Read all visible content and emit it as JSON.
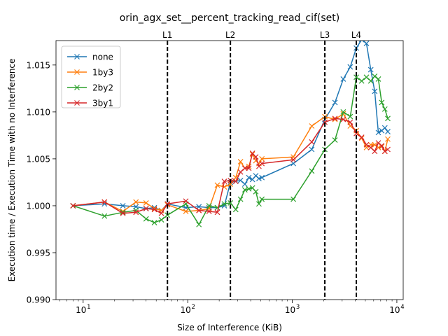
{
  "chart_data": {
    "type": "line",
    "title": "orin_agx_set__percent_tracking_read_cif(set)",
    "xlabel": "Size of Interference (KiB)",
    "ylabel": "Execution time / Execution Time with no Interference",
    "xscale": "log",
    "xlim": [
      5.5,
      11500
    ],
    "ylim": [
      0.99,
      1.0176
    ],
    "x_ticks": [
      {
        "value": 10,
        "base": "10",
        "exp": "1"
      },
      {
        "value": 100,
        "base": "10",
        "exp": "2"
      },
      {
        "value": 1000,
        "base": "10",
        "exp": "3"
      },
      {
        "value": 10000,
        "base": "10",
        "exp": "4"
      }
    ],
    "y_ticks": [
      "0.990",
      "0.995",
      "1.000",
      "1.005",
      "1.010",
      "1.015"
    ],
    "grid": false,
    "legend_position": "top-left",
    "marker": "x",
    "vlines": [
      {
        "label": "L1",
        "x": 64
      },
      {
        "label": "L2",
        "x": 256
      },
      {
        "label": "L3",
        "x": 2048
      },
      {
        "label": "L4",
        "x": 4096
      }
    ],
    "series": [
      {
        "name": "none",
        "color": "#1f77b4",
        "points": [
          [
            8,
            1.0
          ],
          [
            16,
            1.0002
          ],
          [
            24,
            1.0
          ],
          [
            32,
            0.9999
          ],
          [
            40,
            0.9997
          ],
          [
            48,
            0.9998
          ],
          [
            56,
            0.9995
          ],
          [
            64,
            1.0002
          ],
          [
            96,
            0.9998
          ],
          [
            128,
            0.9999
          ],
          [
            160,
            0.9998
          ],
          [
            192,
            0.9998
          ],
          [
            224,
            1.0
          ],
          [
            256,
            1.0025
          ],
          [
            288,
            1.0026
          ],
          [
            320,
            1.0027
          ],
          [
            352,
            1.0023
          ],
          [
            384,
            1.003
          ],
          [
            416,
            1.0028
          ],
          [
            448,
            1.0032
          ],
          [
            480,
            1.0029
          ],
          [
            512,
            1.003
          ],
          [
            1024,
            1.0045
          ],
          [
            1536,
            1.006
          ],
          [
            2048,
            1.0092
          ],
          [
            2560,
            1.011
          ],
          [
            3072,
            1.0135
          ],
          [
            3584,
            1.0148
          ],
          [
            4096,
            1.0168
          ],
          [
            4608,
            1.0177
          ],
          [
            5120,
            1.0173
          ],
          [
            5632,
            1.0145
          ],
          [
            6144,
            1.0122
          ],
          [
            6656,
            1.0078
          ],
          [
            7168,
            1.008
          ],
          [
            7680,
            1.0083
          ],
          [
            8192,
            1.0079
          ]
        ]
      },
      {
        "name": "1by3",
        "color": "#ff7f0e",
        "points": [
          [
            8,
            1.0
          ],
          [
            16,
            1.0004
          ],
          [
            24,
            0.9994
          ],
          [
            32,
            1.0004
          ],
          [
            40,
            1.0003
          ],
          [
            48,
            0.9997
          ],
          [
            56,
            0.9995
          ],
          [
            64,
            1.0001
          ],
          [
            96,
            0.9994
          ],
          [
            128,
            0.9995
          ],
          [
            160,
            0.9997
          ],
          [
            192,
            1.0022
          ],
          [
            224,
            1.002
          ],
          [
            256,
            1.0023
          ],
          [
            288,
            1.003
          ],
          [
            320,
            1.0047
          ],
          [
            352,
            1.004
          ],
          [
            384,
            1.0042
          ],
          [
            416,
            1.0055
          ],
          [
            448,
            1.0048
          ],
          [
            480,
            1.0045
          ],
          [
            512,
            1.005
          ],
          [
            1024,
            1.0052
          ],
          [
            1536,
            1.0085
          ],
          [
            2048,
            1.0095
          ],
          [
            2560,
            1.0092
          ],
          [
            3072,
            1.0098
          ],
          [
            3584,
            1.0085
          ],
          [
            4096,
            1.008
          ],
          [
            4608,
            1.0072
          ],
          [
            5120,
            1.0062
          ],
          [
            5632,
            1.0065
          ],
          [
            6144,
            1.0065
          ],
          [
            6656,
            1.0062
          ],
          [
            7168,
            1.0063
          ],
          [
            7680,
            1.0058
          ],
          [
            8192,
            1.0071
          ]
        ]
      },
      {
        "name": "2by2",
        "color": "#2ca02c",
        "points": [
          [
            8,
            1.0
          ],
          [
            16,
            0.9989
          ],
          [
            24,
            0.9993
          ],
          [
            32,
            0.9995
          ],
          [
            40,
            0.9986
          ],
          [
            48,
            0.9982
          ],
          [
            56,
            0.9985
          ],
          [
            64,
            0.999
          ],
          [
            96,
            1.0002
          ],
          [
            128,
            0.998
          ],
          [
            160,
            1.0
          ],
          [
            192,
            0.9998
          ],
          [
            224,
            1.0002
          ],
          [
            256,
            1.0003
          ],
          [
            288,
            0.9996
          ],
          [
            320,
            1.0007
          ],
          [
            352,
            1.0017
          ],
          [
            384,
            1.0018
          ],
          [
            416,
            1.0019
          ],
          [
            448,
            1.0015
          ],
          [
            480,
            1.0002
          ],
          [
            512,
            1.0007
          ],
          [
            1024,
            1.0007
          ],
          [
            1536,
            1.0037
          ],
          [
            2048,
            1.006
          ],
          [
            2560,
            1.007
          ],
          [
            3072,
            1.01
          ],
          [
            3584,
            1.0095
          ],
          [
            4096,
            1.0137
          ],
          [
            4608,
            1.0133
          ],
          [
            5120,
            1.0137
          ],
          [
            5632,
            1.0133
          ],
          [
            6144,
            1.0138
          ],
          [
            6656,
            1.0135
          ],
          [
            7168,
            1.011
          ],
          [
            7680,
            1.0103
          ],
          [
            8192,
            1.0093
          ]
        ]
      },
      {
        "name": "3by1",
        "color": "#d62728",
        "points": [
          [
            8,
            1.0
          ],
          [
            16,
            1.0004
          ],
          [
            24,
            0.9992
          ],
          [
            32,
            0.9993
          ],
          [
            40,
            0.9997
          ],
          [
            48,
            0.9996
          ],
          [
            56,
            0.9992
          ],
          [
            64,
            1.0002
          ],
          [
            96,
            1.0005
          ],
          [
            128,
            0.9995
          ],
          [
            160,
            0.9994
          ],
          [
            192,
            0.9993
          ],
          [
            224,
            1.0026
          ],
          [
            256,
            1.0027
          ],
          [
            288,
            1.0026
          ],
          [
            320,
            1.0036
          ],
          [
            352,
            1.004
          ],
          [
            384,
            1.004
          ],
          [
            416,
            1.0056
          ],
          [
            448,
            1.0052
          ],
          [
            480,
            1.0042
          ],
          [
            512,
            1.0045
          ],
          [
            1024,
            1.0049
          ],
          [
            1536,
            1.0068
          ],
          [
            2048,
            1.0089
          ],
          [
            2560,
            1.0093
          ],
          [
            3072,
            1.0092
          ],
          [
            3584,
            1.0089
          ],
          [
            4096,
            1.0077
          ],
          [
            4608,
            1.0073
          ],
          [
            5120,
            1.0065
          ],
          [
            5632,
            1.0062
          ],
          [
            6144,
            1.0058
          ],
          [
            6656,
            1.0067
          ],
          [
            7168,
            1.0064
          ],
          [
            7680,
            1.0058
          ],
          [
            8192,
            1.006
          ]
        ]
      }
    ]
  }
}
